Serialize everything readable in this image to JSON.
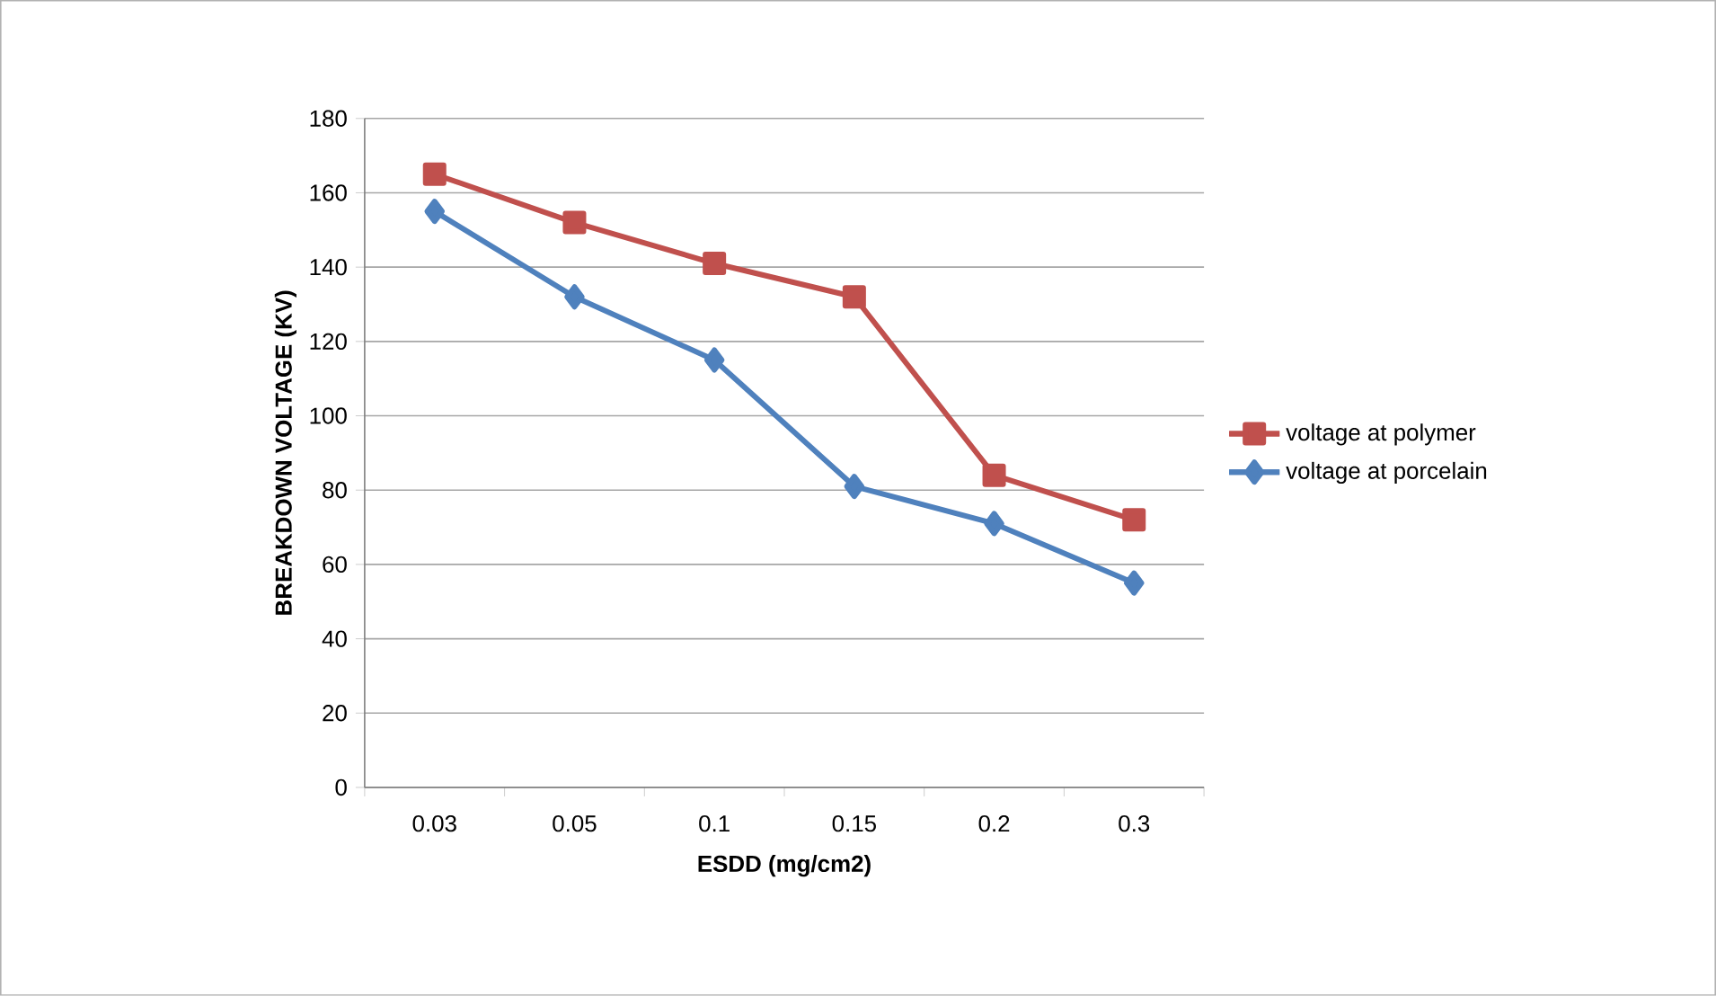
{
  "chart_data": {
    "type": "line",
    "xlabel": "ESDD (mg/cm2)",
    "ylabel": "BREAKDOWN VOLTAGE (KV)",
    "categories": [
      "0.03",
      "0.05",
      "0.1",
      "0.15",
      "0.2",
      "0.3"
    ],
    "series": [
      {
        "name": "voltage at polymer",
        "color": "#c0504d",
        "marker": "square",
        "values": [
          165,
          152,
          141,
          132,
          84,
          72
        ]
      },
      {
        "name": "voltage at porcelain",
        "color": "#4f81bd",
        "marker": "diamond",
        "values": [
          155,
          132,
          115,
          81,
          71,
          55
        ]
      }
    ],
    "ylim": [
      0,
      180
    ],
    "yticks": [
      0,
      20,
      40,
      60,
      80,
      100,
      120,
      140,
      160,
      180
    ],
    "grid": "y",
    "legend": "right",
    "line_style": "solid"
  }
}
